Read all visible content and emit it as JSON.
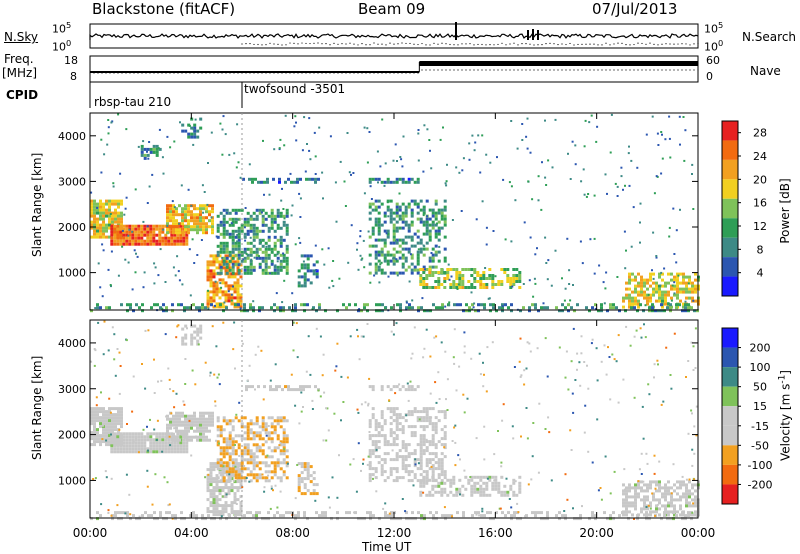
{
  "header": {
    "station": "Blackstone (fitACF)",
    "beam": "Beam 09",
    "date": "07/Jul/2013"
  },
  "panels": {
    "nsky_label": "N.Sky",
    "nsky_ticks": [
      "10^5",
      "10^0"
    ],
    "nsearch_label": "N.Search",
    "nsearch_ticks": [
      "10^5",
      "10^0"
    ],
    "freq_label": "Freq.",
    "freq_unit": "[MHz]",
    "freq_ticks": [
      "18",
      "8"
    ],
    "nave_label": "Nave",
    "nave_ticks": [
      "60",
      "0"
    ],
    "cpid_label": "CPID",
    "cpid_segments": [
      {
        "name": "rbsp-tau 210",
        "start_h": 0,
        "end_h": 6
      },
      {
        "name": "twofsound -3501",
        "start_h": 6,
        "end_h": 24
      }
    ]
  },
  "chart_data": [
    {
      "type": "heatmap",
      "title": "",
      "xlabel": "Time UT",
      "ylabel": "Slant Range [km]",
      "x_ticks": [
        "00:00",
        "04:00",
        "08:00",
        "12:00",
        "16:00",
        "20:00",
        "00:00"
      ],
      "xlim_hours": [
        0,
        24
      ],
      "y_ticks": [
        1000,
        2000,
        3000,
        4000
      ],
      "ylim": [
        180,
        4500
      ],
      "colorbar": {
        "label": "Power [dB]",
        "ticks": [
          4,
          8,
          12,
          16,
          20,
          24,
          28
        ],
        "range": [
          0,
          30
        ],
        "colors": [
          "#1a1aff",
          "#2b56b0",
          "#3d8a86",
          "#2e9e56",
          "#7fc25a",
          "#f2d020",
          "#f2a020",
          "#f26b10",
          "#e62020"
        ]
      },
      "regions": [
        {
          "t": [
            0.0,
            1.2
          ],
          "r": [
            1800,
            2600
          ],
          "level": 18,
          "density": 0.85
        },
        {
          "t": [
            0.8,
            3.8
          ],
          "r": [
            1650,
            2050
          ],
          "level": 25,
          "density": 0.95
        },
        {
          "t": [
            3.0,
            4.8
          ],
          "r": [
            1900,
            2500
          ],
          "level": 20,
          "density": 0.8
        },
        {
          "t": [
            2.0,
            2.8
          ],
          "r": [
            3500,
            3800
          ],
          "level": 9,
          "density": 0.55
        },
        {
          "t": [
            3.6,
            4.4
          ],
          "r": [
            4000,
            4400
          ],
          "level": 8,
          "density": 0.5
        },
        {
          "t": [
            4.6,
            6.0
          ],
          "r": [
            250,
            1400
          ],
          "level": 22,
          "density": 0.7
        },
        {
          "t": [
            5.0,
            7.8
          ],
          "r": [
            1000,
            2400
          ],
          "level": 10,
          "density": 0.55
        },
        {
          "t": [
            8.2,
            9.0
          ],
          "r": [
            700,
            1400
          ],
          "level": 8,
          "density": 0.5
        },
        {
          "t": [
            11.0,
            14.0
          ],
          "r": [
            1000,
            2600
          ],
          "level": 10,
          "density": 0.45
        },
        {
          "t": [
            13.0,
            17.0
          ],
          "r": [
            650,
            1100
          ],
          "level": 16,
          "density": 0.55
        },
        {
          "t": [
            21.0,
            24.0
          ],
          "r": [
            250,
            1000
          ],
          "level": 18,
          "density": 0.55
        },
        {
          "t": [
            0.0,
            24.0
          ],
          "r": [
            180,
            330
          ],
          "level": 10,
          "density": 0.35
        },
        {
          "t": [
            6.0,
            9.0
          ],
          "r": [
            2950,
            3080
          ],
          "level": 8,
          "density": 0.5
        },
        {
          "t": [
            11.0,
            13.0
          ],
          "r": [
            2950,
            3080
          ],
          "level": 8,
          "density": 0.5
        }
      ]
    },
    {
      "type": "heatmap",
      "title": "",
      "xlabel": "Time UT",
      "ylabel": "Slant Range [km]",
      "x_ticks": [
        "00:00",
        "04:00",
        "08:00",
        "12:00",
        "16:00",
        "20:00",
        "00:00"
      ],
      "xlim_hours": [
        0,
        24
      ],
      "y_ticks": [
        1000,
        2000,
        3000,
        4000
      ],
      "ylim": [
        180,
        4500
      ],
      "colorbar": {
        "label": "Velocity [m s^-1]",
        "ticks": [
          200,
          100,
          50,
          15,
          -15,
          -50,
          -100,
          -200
        ],
        "range": [
          -250,
          250
        ],
        "colors": [
          "#e62020",
          "#f26b10",
          "#f2a020",
          "#c8c8c8",
          "#c8c8c8",
          "#7fc25a",
          "#3d8a86",
          "#2b56b0",
          "#1a1aff"
        ]
      },
      "regions": [
        {
          "t": [
            0.0,
            1.2
          ],
          "r": [
            1800,
            2600
          ],
          "level": 0,
          "density": 0.85
        },
        {
          "t": [
            0.8,
            3.8
          ],
          "r": [
            1650,
            2050
          ],
          "level": 0,
          "density": 0.95
        },
        {
          "t": [
            3.0,
            4.8
          ],
          "r": [
            1900,
            2500
          ],
          "level": 0,
          "density": 0.8
        },
        {
          "t": [
            3.6,
            4.4
          ],
          "r": [
            4000,
            4400
          ],
          "level": 0,
          "density": 0.5
        },
        {
          "t": [
            4.6,
            6.0
          ],
          "r": [
            250,
            1400
          ],
          "level": 0,
          "density": 0.7
        },
        {
          "t": [
            5.0,
            7.8
          ],
          "r": [
            1000,
            2400
          ],
          "level": -80,
          "density": 0.55
        },
        {
          "t": [
            8.2,
            9.0
          ],
          "r": [
            700,
            1400
          ],
          "level": -70,
          "density": 0.5
        },
        {
          "t": [
            11.0,
            14.0
          ],
          "r": [
            1000,
            2600
          ],
          "level": -40,
          "density": 0.45
        },
        {
          "t": [
            13.0,
            17.0
          ],
          "r": [
            650,
            1100
          ],
          "level": 0,
          "density": 0.55
        },
        {
          "t": [
            21.0,
            24.0
          ],
          "r": [
            250,
            1000
          ],
          "level": 0,
          "density": 0.55
        },
        {
          "t": [
            0.0,
            24.0
          ],
          "r": [
            180,
            330
          ],
          "level": 0,
          "density": 0.35
        },
        {
          "t": [
            6.0,
            9.0
          ],
          "r": [
            2950,
            3080
          ],
          "level": -60,
          "density": 0.5
        },
        {
          "t": [
            11.0,
            13.0
          ],
          "r": [
            2950,
            3080
          ],
          "level": -60,
          "density": 0.5
        }
      ]
    }
  ]
}
